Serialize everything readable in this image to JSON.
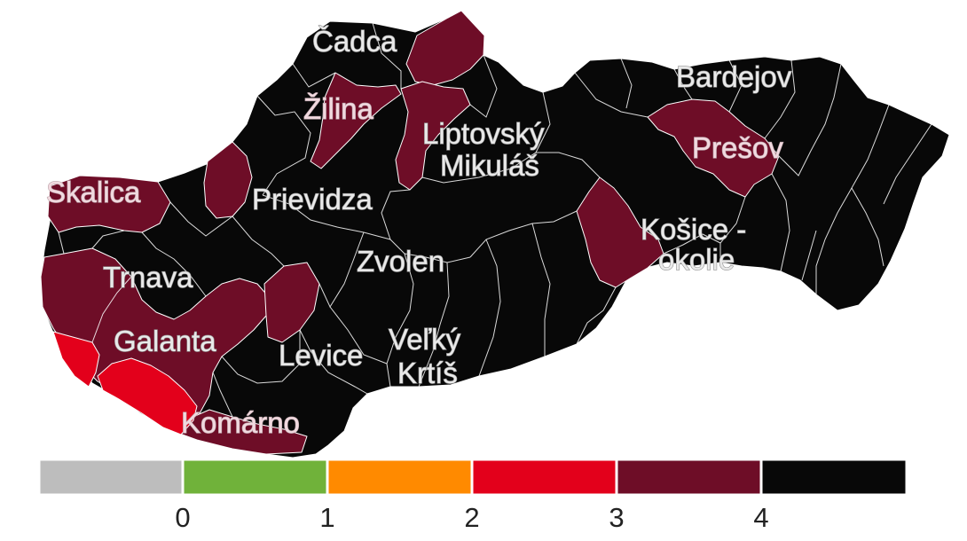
{
  "colors": {
    "no_data": "#bdbdbd",
    "level_0_1": "#70b23a",
    "level_1_2": "#ff8a00",
    "level_2_3": "#e3001b",
    "level_3_4": "#6e0d27",
    "level_4_plus": "#080808",
    "district_border": "#ffffff"
  },
  "map": {
    "labels": [
      {
        "id": "cadca",
        "text": "Čadca"
      },
      {
        "id": "zilina",
        "text": "Žilina"
      },
      {
        "id": "bardejov",
        "text": "Bardejov"
      },
      {
        "id": "liptovsky-1",
        "text": "Liptovský"
      },
      {
        "id": "liptovsky-2",
        "text": "Mikuláš"
      },
      {
        "id": "presov",
        "text": "Prešov"
      },
      {
        "id": "skalica",
        "text": "Skalica"
      },
      {
        "id": "prievidza",
        "text": "Prievidza"
      },
      {
        "id": "kosice-1",
        "text": "Košice -"
      },
      {
        "id": "kosice-2",
        "text": "okolie"
      },
      {
        "id": "zvolen",
        "text": "Zvolen"
      },
      {
        "id": "trnava",
        "text": "Trnava"
      },
      {
        "id": "galanta",
        "text": "Galanta"
      },
      {
        "id": "velky-1",
        "text": "Veľký"
      },
      {
        "id": "velky-2",
        "text": "Krtíš"
      },
      {
        "id": "levice",
        "text": "Levice"
      },
      {
        "id": "komarno",
        "text": "Komárno"
      }
    ]
  },
  "legend": {
    "segments": [
      {
        "name": "no-data",
        "color": "#bdbdbd"
      },
      {
        "name": "0-1",
        "color": "#70b23a"
      },
      {
        "name": "1-2",
        "color": "#ff8a00"
      },
      {
        "name": "2-3",
        "color": "#e3001b"
      },
      {
        "name": "3-4",
        "color": "#6e0d27"
      },
      {
        "name": "4-plus",
        "color": "#080808"
      }
    ],
    "ticks": [
      "0",
      "1",
      "2",
      "3",
      "4"
    ]
  }
}
